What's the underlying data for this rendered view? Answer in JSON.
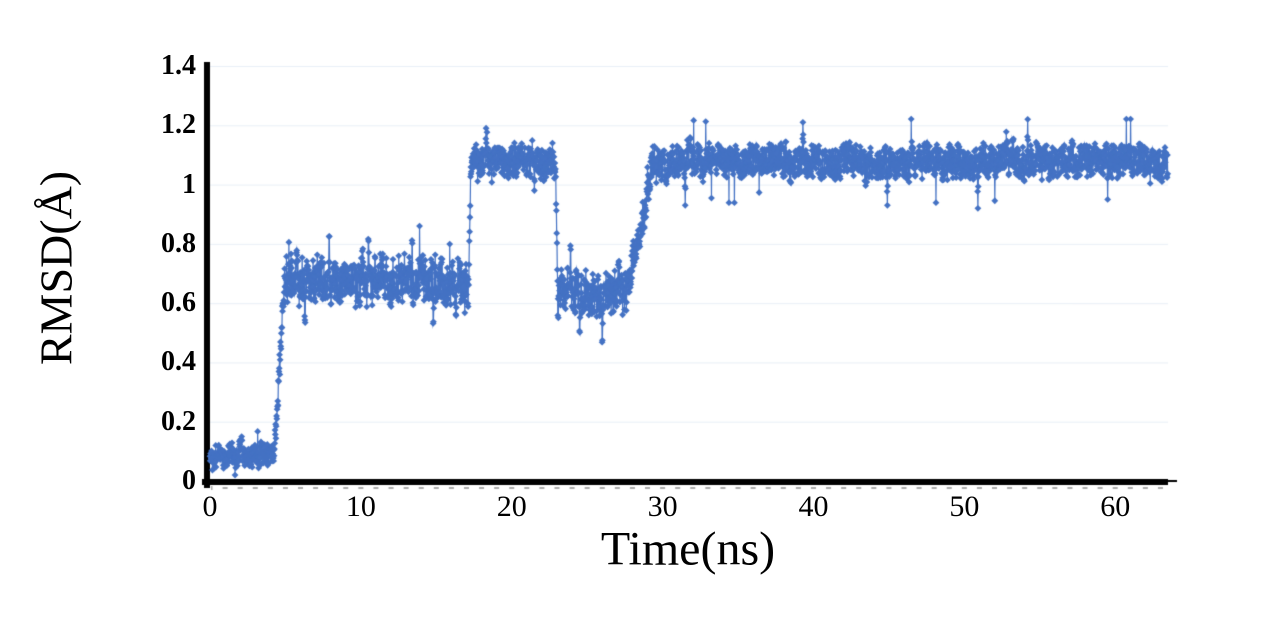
{
  "chart_data": {
    "type": "line",
    "title": "",
    "xlabel": "Time(ns)",
    "ylabel": "RMSD(Å)",
    "background": "#FFFFFF",
    "series_color": "#4472C4",
    "axis_color": "#000000",
    "grid_color": "#E9F0F7",
    "minor_tick_color": "#ABABAB",
    "marker": "diamond",
    "legend": "none",
    "grid": "horizontal",
    "xlim": [
      0,
      63.5
    ],
    "ylim": [
      0,
      1.4
    ],
    "x_ticks": [
      "0",
      "10",
      "20",
      "30",
      "40",
      "50",
      "60"
    ],
    "x_tick_values": [
      0,
      10,
      20,
      30,
      40,
      50,
      60
    ],
    "y_ticks": [
      "0",
      "0.2",
      "0.4",
      "0.6",
      "0.8",
      "1",
      "1.2",
      "1.4"
    ],
    "y_tick_values": [
      0,
      0.2,
      0.4,
      0.6,
      0.8,
      1.0,
      1.2,
      1.4
    ],
    "minor_tick_interval_ns": 1,
    "sample_interval_ns": 0.02,
    "noise": {
      "spike_prob": 0.01,
      "spike_mag": 0.11,
      "seed": 42
    },
    "segments": [
      {
        "t0": 0.0,
        "t1": 4.25,
        "mean": 0.085,
        "amp": 0.04
      },
      {
        "t0": 4.25,
        "t1": 4.95,
        "from": 0.085,
        "to": 0.675,
        "amp": 0.05
      },
      {
        "t0": 4.95,
        "t1": 17.15,
        "mean": 0.675,
        "amp": 0.075
      },
      {
        "t0": 17.15,
        "t1": 17.3,
        "from": 0.675,
        "to": 1.07,
        "amp": 0.03
      },
      {
        "t0": 17.3,
        "t1": 22.9,
        "mean": 1.075,
        "amp": 0.055
      },
      {
        "t0": 22.9,
        "t1": 23.05,
        "from": 1.075,
        "to": 0.64,
        "amp": 0.03
      },
      {
        "t0": 23.05,
        "t1": 27.7,
        "mean": 0.635,
        "amp": 0.075
      },
      {
        "t0": 27.7,
        "t1": 29.3,
        "from": 0.64,
        "to": 1.06,
        "amp": 0.06
      },
      {
        "t0": 29.3,
        "t1": 63.5,
        "mean": 1.08,
        "amp": 0.055
      }
    ],
    "spikes": [
      {
        "t": 2.1,
        "v": 0.15
      },
      {
        "t": 6.3,
        "v": 0.5
      },
      {
        "t": 7.9,
        "v": 0.87
      },
      {
        "t": 10.5,
        "v": 0.84
      },
      {
        "t": 13.4,
        "v": 0.85
      },
      {
        "t": 14.8,
        "v": 0.5
      },
      {
        "t": 16.3,
        "v": 0.53
      },
      {
        "t": 18.3,
        "v": 1.19
      },
      {
        "t": 21.5,
        "v": 0.98
      },
      {
        "t": 23.9,
        "v": 0.82
      },
      {
        "t": 24.5,
        "v": 0.46
      },
      {
        "t": 26.0,
        "v": 0.45
      },
      {
        "t": 31.5,
        "v": 0.93
      },
      {
        "t": 39.3,
        "v": 1.21
      },
      {
        "t": 44.9,
        "v": 0.93
      },
      {
        "t": 50.9,
        "v": 0.92
      },
      {
        "t": 54.2,
        "v": 1.22
      },
      {
        "t": 59.5,
        "v": 0.95
      }
    ]
  }
}
